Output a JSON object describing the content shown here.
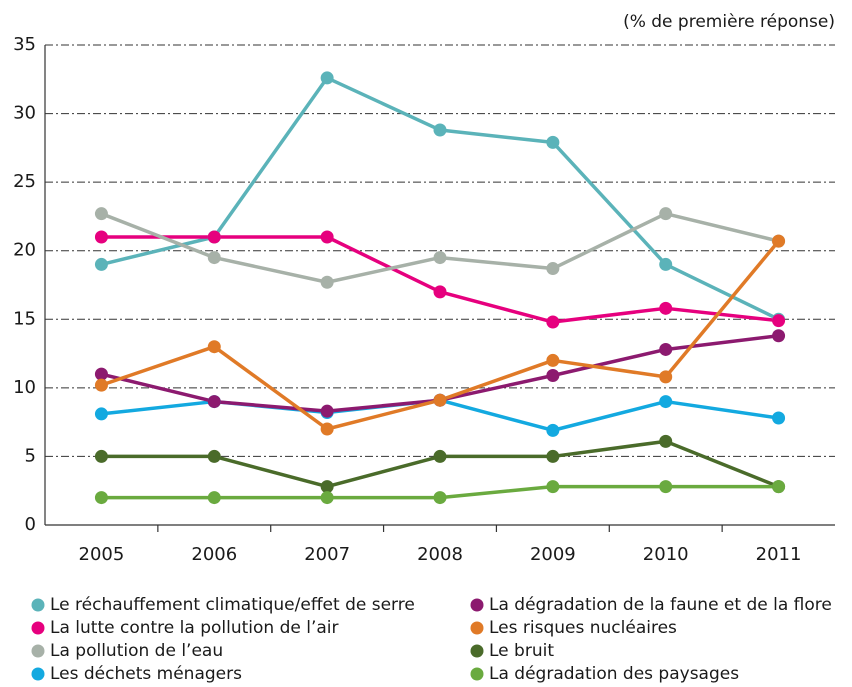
{
  "chart_data": {
    "type": "line",
    "ylabel": "(% de première réponse)",
    "categories": [
      "2005",
      "2006",
      "2007",
      "2008",
      "2009",
      "2010",
      "2011"
    ],
    "ylim": [
      0,
      35
    ],
    "yticks": [
      0,
      5,
      10,
      15,
      20,
      25,
      30,
      35
    ],
    "grid": true,
    "series": [
      {
        "name": "Le réchauffement climatique/effet de serre",
        "color": "#5bb3b9",
        "values": [
          19,
          21,
          32.6,
          28.8,
          27.9,
          19,
          15
        ]
      },
      {
        "name": "La lutte contre la pollution de l’air",
        "color": "#e6007e",
        "values": [
          21,
          21,
          21,
          17,
          14.8,
          15.8,
          14.9
        ]
      },
      {
        "name": "La pollution de l’eau",
        "color": "#a7b1a8",
        "values": [
          22.7,
          19.5,
          17.7,
          19.5,
          18.7,
          22.7,
          20.7
        ]
      },
      {
        "name": "Les déchets ménagers",
        "color": "#13a9e0",
        "values": [
          8.1,
          9,
          8.2,
          9.1,
          6.9,
          9,
          7.8
        ]
      },
      {
        "name": "La dégradation de la faune et de la flore",
        "color": "#8c1a6f",
        "values": [
          11,
          9,
          8.3,
          9.1,
          10.9,
          12.8,
          13.8
        ]
      },
      {
        "name": "Les risques nucléaires",
        "color": "#e07a27",
        "values": [
          10.2,
          13,
          7,
          9.1,
          12,
          10.8,
          20.7
        ]
      },
      {
        "name": "Le bruit",
        "color": "#4a6b2a",
        "values": [
          5,
          5,
          2.8,
          5,
          5,
          6.1,
          2.8
        ]
      },
      {
        "name": "La dégradation des paysages",
        "color": "#6aaa3f",
        "values": [
          2,
          2,
          2,
          2,
          2.8,
          2.8,
          2.8
        ]
      }
    ]
  }
}
